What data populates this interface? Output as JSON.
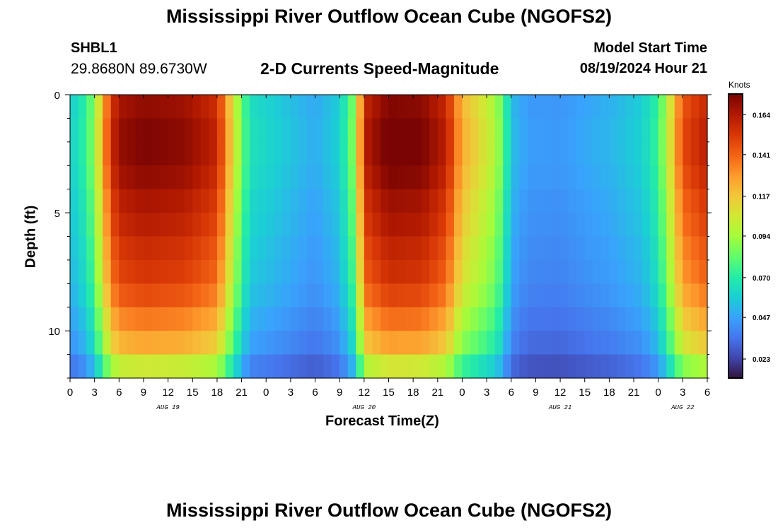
{
  "page": {
    "title": "Mississippi River Outflow Ocean Cube (NGOFS2)",
    "station_id": "SHBL1",
    "station_coords": "29.8680N  89.6730W",
    "subtitle": "2-D Currents Speed-Magnitude",
    "model_start_label": "Model Start Time",
    "model_start_value": "08/19/2024 Hour 21",
    "footer_title": "Mississippi River Outflow Ocean Cube (NGOFS2)"
  },
  "chart_data": {
    "type": "heatmap",
    "title": "2-D Currents Speed-Magnitude",
    "xlabel": "Forecast Time(Z)",
    "ylabel": "Depth (ft)",
    "x_ticks": [
      "0",
      "3",
      "6",
      "9",
      "12",
      "15",
      "18",
      "21",
      "0",
      "3",
      "6",
      "9",
      "12",
      "15",
      "18",
      "21",
      "0",
      "3",
      "6",
      "9",
      "12",
      "15",
      "18",
      "21",
      "0",
      "3",
      "6"
    ],
    "x_range_hours": [
      0,
      78
    ],
    "day_labels": [
      {
        "label": "AUG 19",
        "hour": 12
      },
      {
        "label": "AUG 20",
        "hour": 36
      },
      {
        "label": "AUG 21",
        "hour": 60
      },
      {
        "label": "AUG 22",
        "hour": 75
      }
    ],
    "y_ticks": [
      "0",
      "5",
      "10"
    ],
    "y_range": [
      0,
      12
    ],
    "colorbar": {
      "unit": "Knots",
      "range": [
        0.012,
        0.176
      ],
      "ticks": [
        "0.164",
        "0.141",
        "0.117",
        "0.094",
        "0.070",
        "0.047",
        "0.023"
      ],
      "colormap": [
        "#30123b",
        "#4145ab",
        "#4675ed",
        "#39a2fc",
        "#1bcfd4",
        "#24eca6",
        "#61fc6c",
        "#a4fc3b",
        "#d1e834",
        "#f3c63a",
        "#fe9b2d",
        "#f36315",
        "#d93806",
        "#b11901",
        "#7a0403"
      ]
    },
    "depth_rows_ft": [
      0.5,
      1.5,
      2.5,
      3.5,
      4.5,
      5.5,
      6.5,
      7.5,
      8.5,
      9.5,
      10.5,
      11.5
    ],
    "speed_profile_hour_knots": [
      [
        0,
        0.06
      ],
      [
        1,
        0.066
      ],
      [
        2,
        0.074
      ],
      [
        3,
        0.092
      ],
      [
        4,
        0.125
      ],
      [
        5,
        0.155
      ],
      [
        6,
        0.17
      ],
      [
        9,
        0.175
      ],
      [
        14,
        0.172
      ],
      [
        18,
        0.16
      ],
      [
        19.5,
        0.122
      ],
      [
        21,
        0.085
      ],
      [
        22,
        0.066
      ],
      [
        24,
        0.062
      ],
      [
        27,
        0.056
      ],
      [
        30,
        0.05
      ],
      [
        33,
        0.06
      ],
      [
        34.5,
        0.085
      ],
      [
        35.5,
        0.128
      ],
      [
        36.5,
        0.165
      ],
      [
        39,
        0.178
      ],
      [
        43,
        0.176
      ],
      [
        46,
        0.162
      ],
      [
        48,
        0.124
      ],
      [
        50,
        0.112
      ],
      [
        52,
        0.098
      ],
      [
        53,
        0.082
      ],
      [
        54,
        0.055
      ],
      [
        56,
        0.046
      ],
      [
        60,
        0.045
      ],
      [
        64,
        0.05
      ],
      [
        66,
        0.052
      ],
      [
        70,
        0.06
      ],
      [
        72,
        0.075
      ],
      [
        73.5,
        0.11
      ],
      [
        75,
        0.148
      ],
      [
        78,
        0.162
      ]
    ],
    "depth_factor": [
      0.98,
      1.0,
      1.0,
      0.98,
      0.95,
      0.93,
      0.9,
      0.88,
      0.84,
      0.78,
      0.72,
      0.6
    ]
  }
}
